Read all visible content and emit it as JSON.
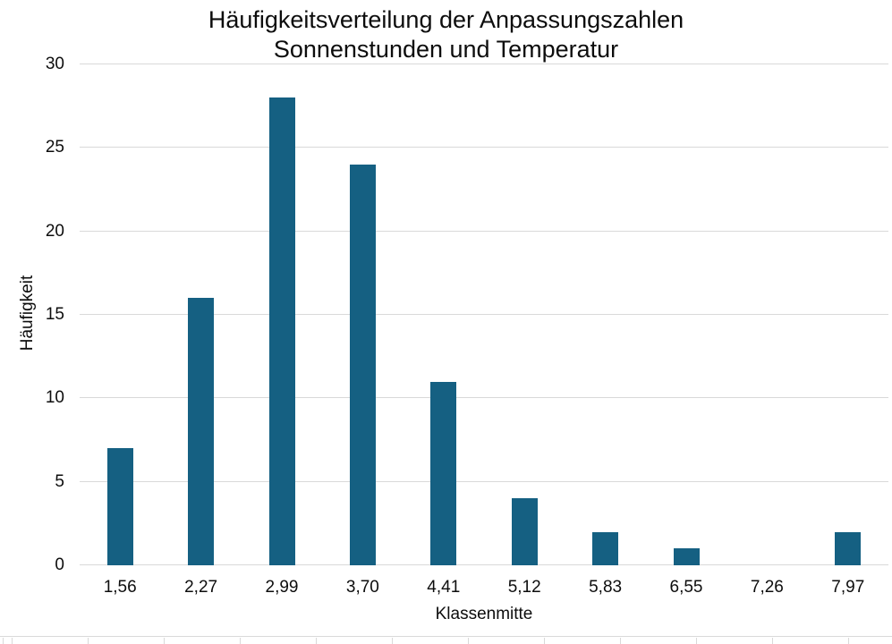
{
  "chart_data": {
    "type": "bar",
    "title": "Häufigkeitsverteilung der Anpassungszahlen Sonnenstunden und Temperatur",
    "title_lines": [
      "Häufigkeitsverteilung der Anpassungszahlen",
      "Sonnenstunden und Temperatur"
    ],
    "xlabel": "Klassenmitte",
    "ylabel": "Häufigkeit",
    "categories": [
      "1,56",
      "2,27",
      "2,99",
      "3,70",
      "4,41",
      "5,12",
      "5,83",
      "6,55",
      "7,26",
      "7,97"
    ],
    "values": [
      7,
      16,
      28,
      24,
      11,
      4,
      2,
      1,
      0,
      2
    ],
    "ylim": [
      0,
      30
    ],
    "yticks": [
      0,
      5,
      10,
      15,
      20,
      25,
      30
    ],
    "grid": "horizontal",
    "legend": "none",
    "bar_color": "#156082",
    "gridline_color": "#d9d9d9",
    "axis_line_color": "#d9d9d9",
    "text_color": "#0d0d0d"
  }
}
